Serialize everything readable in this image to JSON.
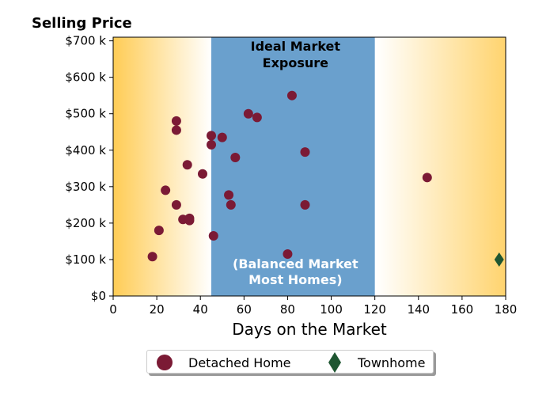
{
  "chart_data": {
    "type": "scatter",
    "title": "Selling Price",
    "xlabel": "Days on the Market",
    "ylabel": "",
    "xlim": [
      0,
      180
    ],
    "ylim": [
      0,
      710000
    ],
    "x_ticks": [
      0,
      20,
      40,
      60,
      80,
      100,
      120,
      140,
      160,
      180
    ],
    "x_tick_labels": [
      "0",
      "20",
      "40",
      "60",
      "80",
      "100",
      "120",
      "140",
      "160",
      "180"
    ],
    "y_ticks": [
      0,
      100000,
      200000,
      300000,
      400000,
      500000,
      600000,
      700000
    ],
    "y_tick_labels": [
      "$0",
      "$100 k",
      "$200 k",
      "$300 k",
      "$400 k",
      "$500 k",
      "$600 k",
      "$700 k"
    ],
    "grid": false,
    "legend_position": "bottom-center",
    "shaded_band": {
      "x_start": 45,
      "x_end": 120,
      "label_top": "Ideal Market\nExposure",
      "label_bottom": "(Balanced Market\nMost Homes)",
      "color": "#6aa0cd"
    },
    "background_gradient_color": "#ffcc55",
    "series": [
      {
        "name": "Detached Home",
        "marker": "circle",
        "color": "#7b1a35",
        "points": [
          {
            "x": 18,
            "y": 108000
          },
          {
            "x": 21,
            "y": 180000
          },
          {
            "x": 24,
            "y": 290000
          },
          {
            "x": 29,
            "y": 480000
          },
          {
            "x": 29,
            "y": 455000
          },
          {
            "x": 29,
            "y": 250000
          },
          {
            "x": 32,
            "y": 210000
          },
          {
            "x": 35,
            "y": 213000
          },
          {
            "x": 35,
            "y": 207000
          },
          {
            "x": 34,
            "y": 360000
          },
          {
            "x": 41,
            "y": 335000
          },
          {
            "x": 45,
            "y": 440000
          },
          {
            "x": 45,
            "y": 415000
          },
          {
            "x": 46,
            "y": 165000
          },
          {
            "x": 50,
            "y": 435000
          },
          {
            "x": 53,
            "y": 277000
          },
          {
            "x": 54,
            "y": 250000
          },
          {
            "x": 56,
            "y": 380000
          },
          {
            "x": 62,
            "y": 500000
          },
          {
            "x": 66,
            "y": 490000
          },
          {
            "x": 80,
            "y": 115000
          },
          {
            "x": 82,
            "y": 550000
          },
          {
            "x": 88,
            "y": 395000
          },
          {
            "x": 88,
            "y": 250000
          },
          {
            "x": 144,
            "y": 325000
          }
        ]
      },
      {
        "name": "Townhome",
        "marker": "diamond",
        "color": "#1e5631",
        "points": [
          {
            "x": 177,
            "y": 100000
          }
        ]
      }
    ]
  }
}
